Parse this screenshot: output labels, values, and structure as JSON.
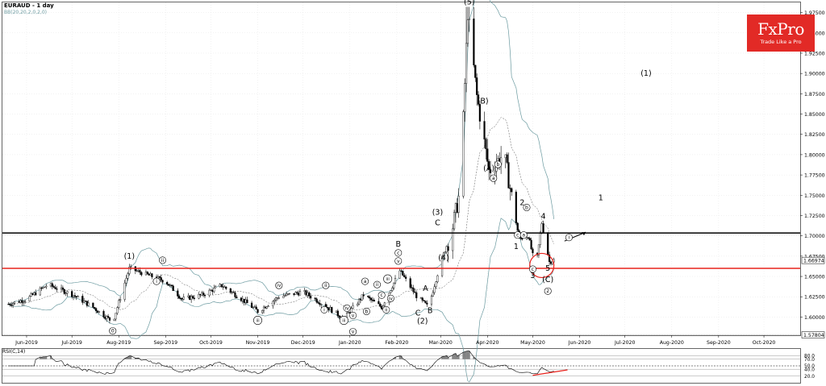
{
  "header": {
    "symbol_label": "EURAUD - 1 day",
    "indicator_label": "BB(20,20,2,0,2,0)"
  },
  "logo": {
    "brand": "FxPro",
    "tagline": "Trade Like a Pro",
    "color": "#e22a26"
  },
  "rsi_panel": {
    "label": "RSI(C,14)",
    "ticks": [
      "80.0",
      "70.0",
      "50.0",
      "40.0",
      "20.0"
    ],
    "tick_values": [
      80,
      70,
      50,
      40,
      20
    ]
  },
  "colors": {
    "candle": "#000000",
    "bollinger": "#6b9aa0",
    "black_level": "#000000",
    "red_level": "#e8231d",
    "rsi_fill": "#808080",
    "trendline": "#e8231d"
  },
  "chart_data": {
    "type": "candlestick",
    "y_ticks": [
      "1.97500",
      "1.95000",
      "1.92500",
      "1.90000",
      "1.87500",
      "1.85000",
      "1.82500",
      "1.80000",
      "1.77500",
      "1.75000",
      "1.72500",
      "1.70000",
      "1.67500",
      "1.65000",
      "1.62500",
      "1.60000"
    ],
    "y_range": [
      1.5776,
      1.9875
    ],
    "last_price_label": "1.66974",
    "low_price_label": "1.57804",
    "x_ticks": [
      "Jun-2019",
      "Jul-2019",
      "Aug-2019",
      "Sep-2019",
      "Oct-2019",
      "Nov-2019",
      "Dec-2019",
      "Jan-2020",
      "Feb-2020",
      "Mar-2020",
      "Apr-2020",
      "May-2020",
      "Jun-2020",
      "Jul-2020",
      "Aug-2020",
      "Sep-2020",
      "Oct-2020"
    ],
    "horizontal_levels": [
      {
        "value": 1.7035,
        "color": "#000000"
      },
      {
        "value": 1.66,
        "color": "#e8231d"
      }
    ],
    "price_path": [
      {
        "date": "2019-05-20",
        "price": 1.616
      },
      {
        "date": "2019-06-01",
        "price": 1.622
      },
      {
        "date": "2019-06-15",
        "price": 1.64
      },
      {
        "date": "2019-07-01",
        "price": 1.628
      },
      {
        "date": "2019-07-15",
        "price": 1.612
      },
      {
        "date": "2019-07-28",
        "price": 1.594
      },
      {
        "date": "2019-08-08",
        "price": 1.66
      },
      {
        "date": "2019-08-20",
        "price": 1.652
      },
      {
        "date": "2019-09-01",
        "price": 1.644
      },
      {
        "date": "2019-09-12",
        "price": 1.622
      },
      {
        "date": "2019-09-25",
        "price": 1.627
      },
      {
        "date": "2019-10-08",
        "price": 1.639
      },
      {
        "date": "2019-10-20",
        "price": 1.624
      },
      {
        "date": "2019-11-01",
        "price": 1.607
      },
      {
        "date": "2019-11-15",
        "price": 1.625
      },
      {
        "date": "2019-12-01",
        "price": 1.631
      },
      {
        "date": "2019-12-15",
        "price": 1.615
      },
      {
        "date": "2019-12-28",
        "price": 1.598
      },
      {
        "date": "2020-01-10",
        "price": 1.627
      },
      {
        "date": "2020-01-22",
        "price": 1.612
      },
      {
        "date": "2020-02-03",
        "price": 1.657
      },
      {
        "date": "2020-02-14",
        "price": 1.626
      },
      {
        "date": "2020-02-22",
        "price": 1.612
      },
      {
        "date": "2020-03-01",
        "price": 1.667
      },
      {
        "date": "2020-03-08",
        "price": 1.703
      },
      {
        "date": "2020-03-14",
        "price": 1.756
      },
      {
        "date": "2020-03-19",
        "price": 1.975
      },
      {
        "date": "2020-03-25",
        "price": 1.872
      },
      {
        "date": "2020-04-02",
        "price": 1.78
      },
      {
        "date": "2020-04-12",
        "price": 1.801
      },
      {
        "date": "2020-04-22",
        "price": 1.696
      },
      {
        "date": "2020-04-28",
        "price": 1.7
      },
      {
        "date": "2020-05-03",
        "price": 1.66
      },
      {
        "date": "2020-05-07",
        "price": 1.716
      },
      {
        "date": "2020-05-12",
        "price": 1.668
      },
      {
        "date": "2020-05-15",
        "price": 1.67
      }
    ],
    "wave_labels": [
      {
        "text": "0",
        "date": "2019-07-28",
        "price": 1.581,
        "circled": true
      },
      {
        "text": "(1)",
        "date": "2019-08-08",
        "price": 1.672
      },
      {
        "text": "ii",
        "date": "2019-08-30",
        "price": 1.668,
        "circled": true
      },
      {
        "text": "i",
        "date": "2019-08-26",
        "price": 1.642,
        "circled": true
      },
      {
        "text": "iii",
        "date": "2019-11-01",
        "price": 1.594,
        "circled": true
      },
      {
        "text": "iv",
        "date": "2019-11-15",
        "price": 1.637,
        "circled": true
      },
      {
        "text": "ii",
        "date": "2019-12-16",
        "price": 1.637,
        "circled": true
      },
      {
        "text": "i",
        "date": "2019-12-15",
        "price": 1.607,
        "circled": true
      },
      {
        "text": "iii",
        "date": "2019-12-28",
        "price": 1.594,
        "circled": true
      },
      {
        "text": "iv",
        "date": "2019-12-30",
        "price": 1.609,
        "circled": true
      },
      {
        "text": "v",
        "date": "2020-01-03",
        "price": 1.6,
        "circled": true
      },
      {
        "text": "v",
        "date": "2020-01-03",
        "price": 1.58,
        "circled": true
      },
      {
        "text": "a",
        "date": "2020-01-11",
        "price": 1.642,
        "circled": true
      },
      {
        "text": "b",
        "date": "2020-01-12",
        "price": 1.605,
        "circled": true
      },
      {
        "text": "c",
        "date": "2020-01-22",
        "price": 1.625,
        "circled": true
      },
      {
        "text": "iv",
        "date": "2020-01-28",
        "price": 1.621,
        "circled": true
      },
      {
        "text": "ii",
        "date": "2020-01-19",
        "price": 1.638,
        "circled": true
      },
      {
        "text": "iii",
        "date": "2020-01-26",
        "price": 1.645,
        "circled": true
      },
      {
        "text": "ii",
        "date": "2020-01-25",
        "price": 1.607,
        "circled": true
      },
      {
        "text": "v",
        "date": "2020-02-02",
        "price": 1.667,
        "circled": true
      },
      {
        "text": "c",
        "date": "2020-02-02",
        "price": 1.677,
        "circled": true
      },
      {
        "text": "B",
        "date": "2020-02-02",
        "price": 1.687
      },
      {
        "text": "A",
        "date": "2020-02-20",
        "price": 1.632
      },
      {
        "text": "C",
        "date": "2020-02-15",
        "price": 1.602
      },
      {
        "text": "B",
        "date": "2020-02-23",
        "price": 1.605
      },
      {
        "text": "(2)",
        "date": "2020-02-18",
        "price": 1.592
      },
      {
        "text": "(3)",
        "date": "2020-02-28",
        "price": 1.726
      },
      {
        "text": "C",
        "date": "2020-02-28",
        "price": 1.713
      },
      {
        "text": "(4)",
        "date": "2020-03-03",
        "price": 1.67
      },
      {
        "text": "(5)",
        "date": "2020-03-20",
        "price": 1.985
      },
      {
        "text": "5",
        "date": "2020-03-20",
        "price": 1.994,
        "circled": true
      },
      {
        "text": "(B)",
        "date": "2020-03-29",
        "price": 1.863
      },
      {
        "text": "(A)",
        "date": "2020-04-02",
        "price": 1.78
      },
      {
        "text": "a",
        "date": "2020-04-05",
        "price": 1.769,
        "circled": true
      },
      {
        "text": "b",
        "date": "2020-04-08",
        "price": 1.786,
        "circled": true
      },
      {
        "text": "2",
        "date": "2020-04-24",
        "price": 1.738
      },
      {
        "text": "b",
        "date": "2020-04-27",
        "price": 1.733,
        "circled": true
      },
      {
        "text": "c",
        "date": "2020-04-21",
        "price": 1.699,
        "circled": true
      },
      {
        "text": "a",
        "date": "2020-04-25",
        "price": 1.699,
        "circled": true
      },
      {
        "text": "1",
        "date": "2020-04-20",
        "price": 1.684
      },
      {
        "text": "4",
        "date": "2020-05-08",
        "price": 1.721
      },
      {
        "text": "3",
        "date": "2020-05-01",
        "price": 1.648
      },
      {
        "text": "c",
        "date": "2020-05-01",
        "price": 1.657,
        "circled": true
      },
      {
        "text": "5",
        "date": "2020-05-11",
        "price": 1.657
      },
      {
        "text": "(C)",
        "date": "2020-05-11",
        "price": 1.643
      },
      {
        "text": "2",
        "date": "2020-05-11",
        "price": 1.63,
        "circled": true
      },
      {
        "text": "i",
        "date": "2020-05-25",
        "price": 1.696,
        "circled": true
      },
      {
        "text": "1",
        "date": "2020-06-15",
        "price": 1.744
      },
      {
        "text": "(1)",
        "date": "2020-07-15",
        "price": 1.897
      }
    ]
  }
}
